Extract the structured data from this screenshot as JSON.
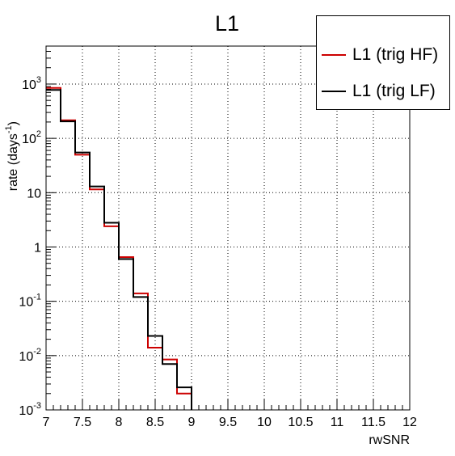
{
  "chart_data": {
    "type": "step",
    "title": "L1",
    "xlabel": "rwSNR",
    "ylabel": "rate (days",
    "ylabel_sup": "-1",
    "ylabel_close": ")",
    "xlim": [
      7,
      12
    ],
    "ylim": [
      0.001,
      5000
    ],
    "yscale": "log",
    "grid": true,
    "legend_position": "top-right",
    "x_ticks": [
      7,
      7.5,
      8,
      8.5,
      9,
      9.5,
      10,
      10.5,
      11,
      11.5,
      12
    ],
    "x_tick_labels": [
      "7",
      "7.5",
      "8",
      "8.5",
      "9",
      "9.5",
      "10",
      "10.5",
      "11",
      "11.5",
      "12"
    ],
    "y_ticks": [
      {
        "value": 0.001,
        "base": "10",
        "exp": "-3"
      },
      {
        "value": 0.01,
        "base": "10",
        "exp": "-2"
      },
      {
        "value": 0.1,
        "base": "10",
        "exp": "-1"
      },
      {
        "value": 1,
        "base": "1",
        "exp": ""
      },
      {
        "value": 10,
        "base": "10",
        "exp": ""
      },
      {
        "value": 100,
        "base": "10",
        "exp": "2"
      },
      {
        "value": 1000,
        "base": "10",
        "exp": "3"
      }
    ],
    "bin_edges": [
      7.0,
      7.2,
      7.4,
      7.6,
      7.8,
      8.0,
      8.2,
      8.4,
      8.6,
      8.8,
      9.0
    ],
    "series": [
      {
        "name": "L1 (trig HF)",
        "color": "#cc0000",
        "values": [
          850,
          215,
          50,
          11.5,
          2.4,
          0.65,
          0.14,
          0.014,
          0.0085,
          0.002
        ]
      },
      {
        "name": "L1 (trig LF)",
        "color": "#000000",
        "values": [
          780,
          205,
          55,
          13,
          2.8,
          0.6,
          0.12,
          0.023,
          0.007,
          0.0026
        ]
      }
    ]
  }
}
